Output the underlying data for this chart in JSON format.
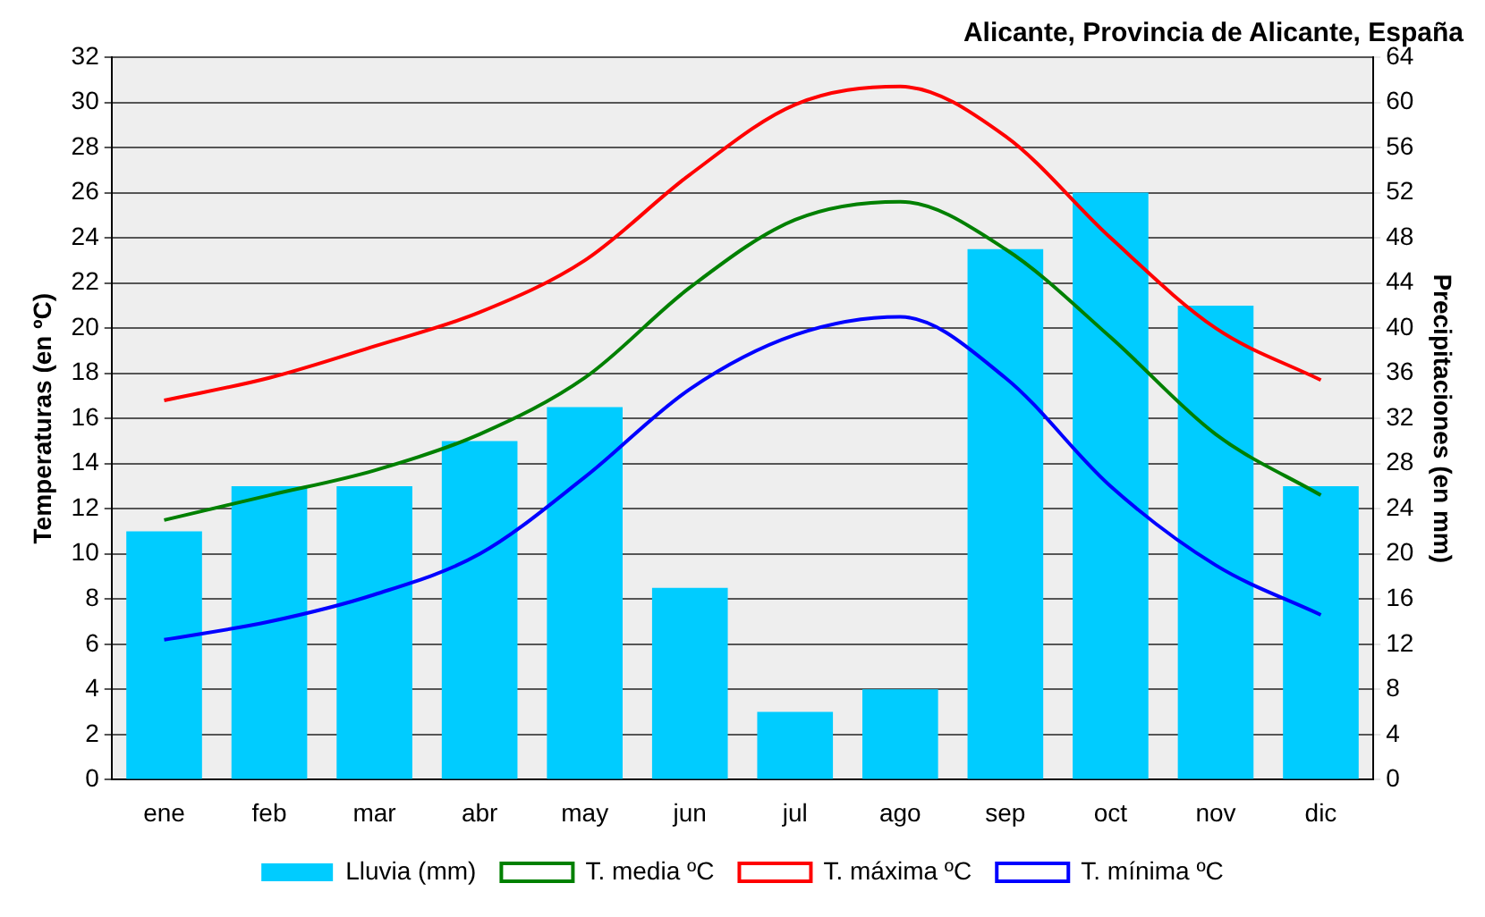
{
  "chart_data": {
    "type": "bar",
    "title": "Alicante, Provincia de Alicante, España",
    "ylabel": "Temperaturas (en ºC)",
    "y2label": "Precipitaciones (en mm)",
    "categories": [
      "ene",
      "feb",
      "mar",
      "abr",
      "may",
      "jun",
      "jul",
      "ago",
      "sep",
      "oct",
      "nov",
      "dic"
    ],
    "series": [
      {
        "name": "Lluvia (mm)",
        "axis": "y2",
        "color": "#00ccff",
        "values": [
          22,
          26,
          26,
          30,
          33,
          17,
          6,
          8,
          47,
          52,
          42,
          26
        ]
      },
      {
        "name": "T. media ºC",
        "type": "line",
        "color": "#008000",
        "values": [
          11.5,
          12.6,
          13.7,
          15.3,
          17.8,
          21.8,
          24.8,
          25.6,
          23.5,
          19.6,
          15.3,
          12.6
        ]
      },
      {
        "name": "T. máxima ºC",
        "type": "line",
        "color": "#ff0000",
        "values": [
          16.8,
          17.8,
          19.2,
          20.7,
          23.0,
          26.8,
          29.9,
          30.7,
          28.5,
          24.0,
          20.0,
          17.7
        ]
      },
      {
        "name": "T. mínima ºC",
        "type": "line",
        "color": "#0000ff",
        "values": [
          6.2,
          7.0,
          8.2,
          10.0,
          13.4,
          17.3,
          19.7,
          20.5,
          17.8,
          13.0,
          9.5,
          7.3
        ]
      }
    ],
    "ylim": [
      0,
      32
    ],
    "yticks": [
      0,
      2,
      4,
      6,
      8,
      10,
      12,
      14,
      16,
      18,
      20,
      22,
      24,
      26,
      28,
      30,
      32
    ],
    "y2lim": [
      0,
      64
    ],
    "y2ticks": [
      0,
      4,
      8,
      12,
      16,
      20,
      24,
      28,
      32,
      36,
      40,
      44,
      48,
      52,
      56,
      60,
      64
    ],
    "grid": "y",
    "legend": "bottom",
    "marker": "none",
    "line_style": "solid"
  }
}
